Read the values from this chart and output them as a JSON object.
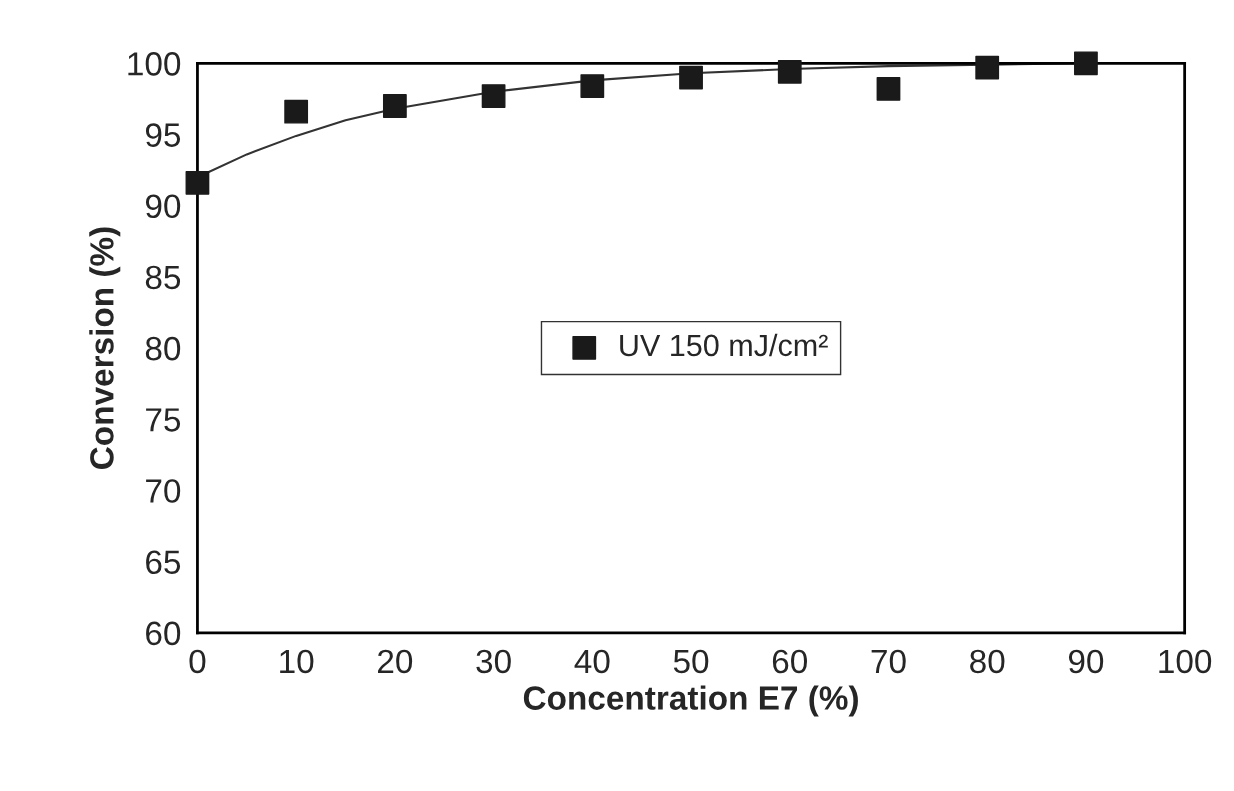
{
  "chart_data": {
    "type": "scatter",
    "xlabel": "Concentration E7 (%)",
    "ylabel": "Conversion (%)",
    "xlim": [
      0,
      100
    ],
    "xticks": [
      0,
      10,
      20,
      30,
      40,
      50,
      60,
      70,
      80,
      90,
      100
    ],
    "ylim": [
      60,
      100
    ],
    "yticks": [
      60,
      65,
      70,
      75,
      80,
      85,
      90,
      95,
      100
    ],
    "grid": false,
    "legend": "center",
    "series": [
      {
        "name": "UV 150 mJ/cm²",
        "marker": "square",
        "color": "#1a1a1a",
        "x": [
          0,
          10,
          20,
          30,
          40,
          50,
          60,
          70,
          80,
          90
        ],
        "values": [
          91.6,
          96.6,
          97.0,
          97.7,
          98.4,
          99.0,
          99.4,
          98.2,
          99.7,
          100
        ]
      },
      {
        "type": "line",
        "color": "#333333",
        "line_style": "solid",
        "x": [
          0,
          5,
          10,
          15,
          20,
          30,
          40,
          50,
          60,
          70,
          80,
          90
        ],
        "values": [
          92,
          93.6,
          94.9,
          96.0,
          96.8,
          98.0,
          98.8,
          99.3,
          99.6,
          99.8,
          99.9,
          100
        ]
      }
    ]
  }
}
